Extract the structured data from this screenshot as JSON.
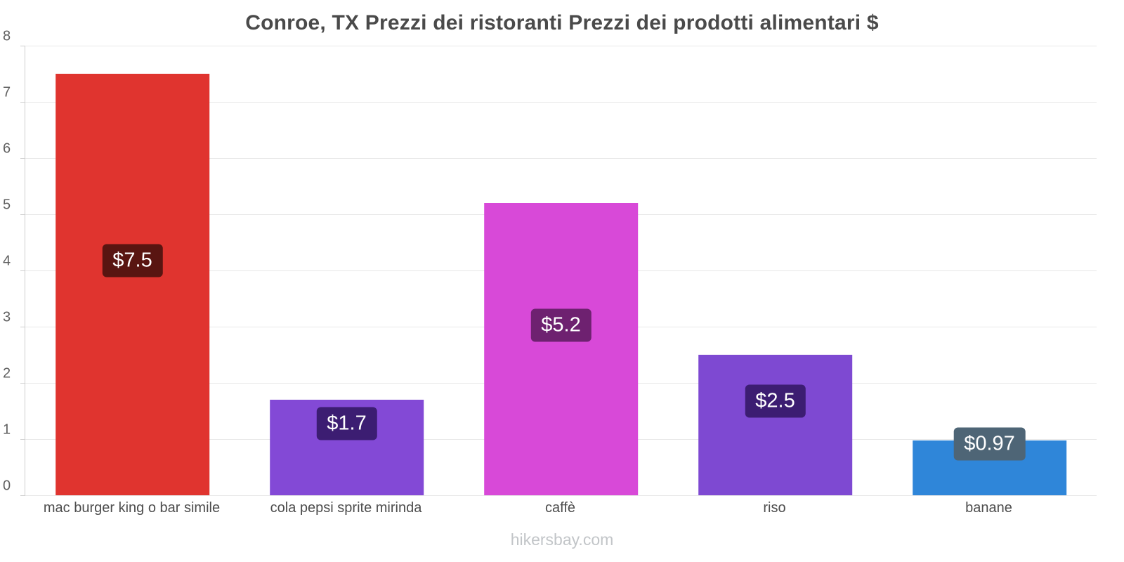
{
  "title": "Conroe, TX Prezzi dei ristoranti Prezzi dei prodotti alimentari $",
  "footer": "hikersbay.com",
  "chart_data": {
    "type": "bar",
    "title": "Conroe, TX Prezzi dei ristoranti Prezzi dei prodotti alimentari $",
    "categories": [
      "mac burger king o bar simile",
      "cola pepsi sprite mirinda",
      "caffè",
      "riso",
      "banane"
    ],
    "values": [
      7.5,
      1.7,
      5.2,
      2.5,
      0.97
    ],
    "value_labels": [
      "$7.5",
      "$1.7",
      "$5.2",
      "$2.5",
      "$0.97"
    ],
    "bar_colors": [
      "#e0342f",
      "#8349d6",
      "#d849d8",
      "#7e49d2",
      "#2f86d9"
    ],
    "badge_colors": [
      "#591511",
      "#3c1d72",
      "#6e2170",
      "#3c1d72",
      "#4e6576"
    ],
    "xlabel": "",
    "ylabel": "",
    "ylim": [
      0,
      8
    ],
    "yticks": [
      0,
      1,
      2,
      3,
      4,
      5,
      6,
      7,
      8
    ],
    "grid": true,
    "legend": false,
    "currency": "$"
  }
}
